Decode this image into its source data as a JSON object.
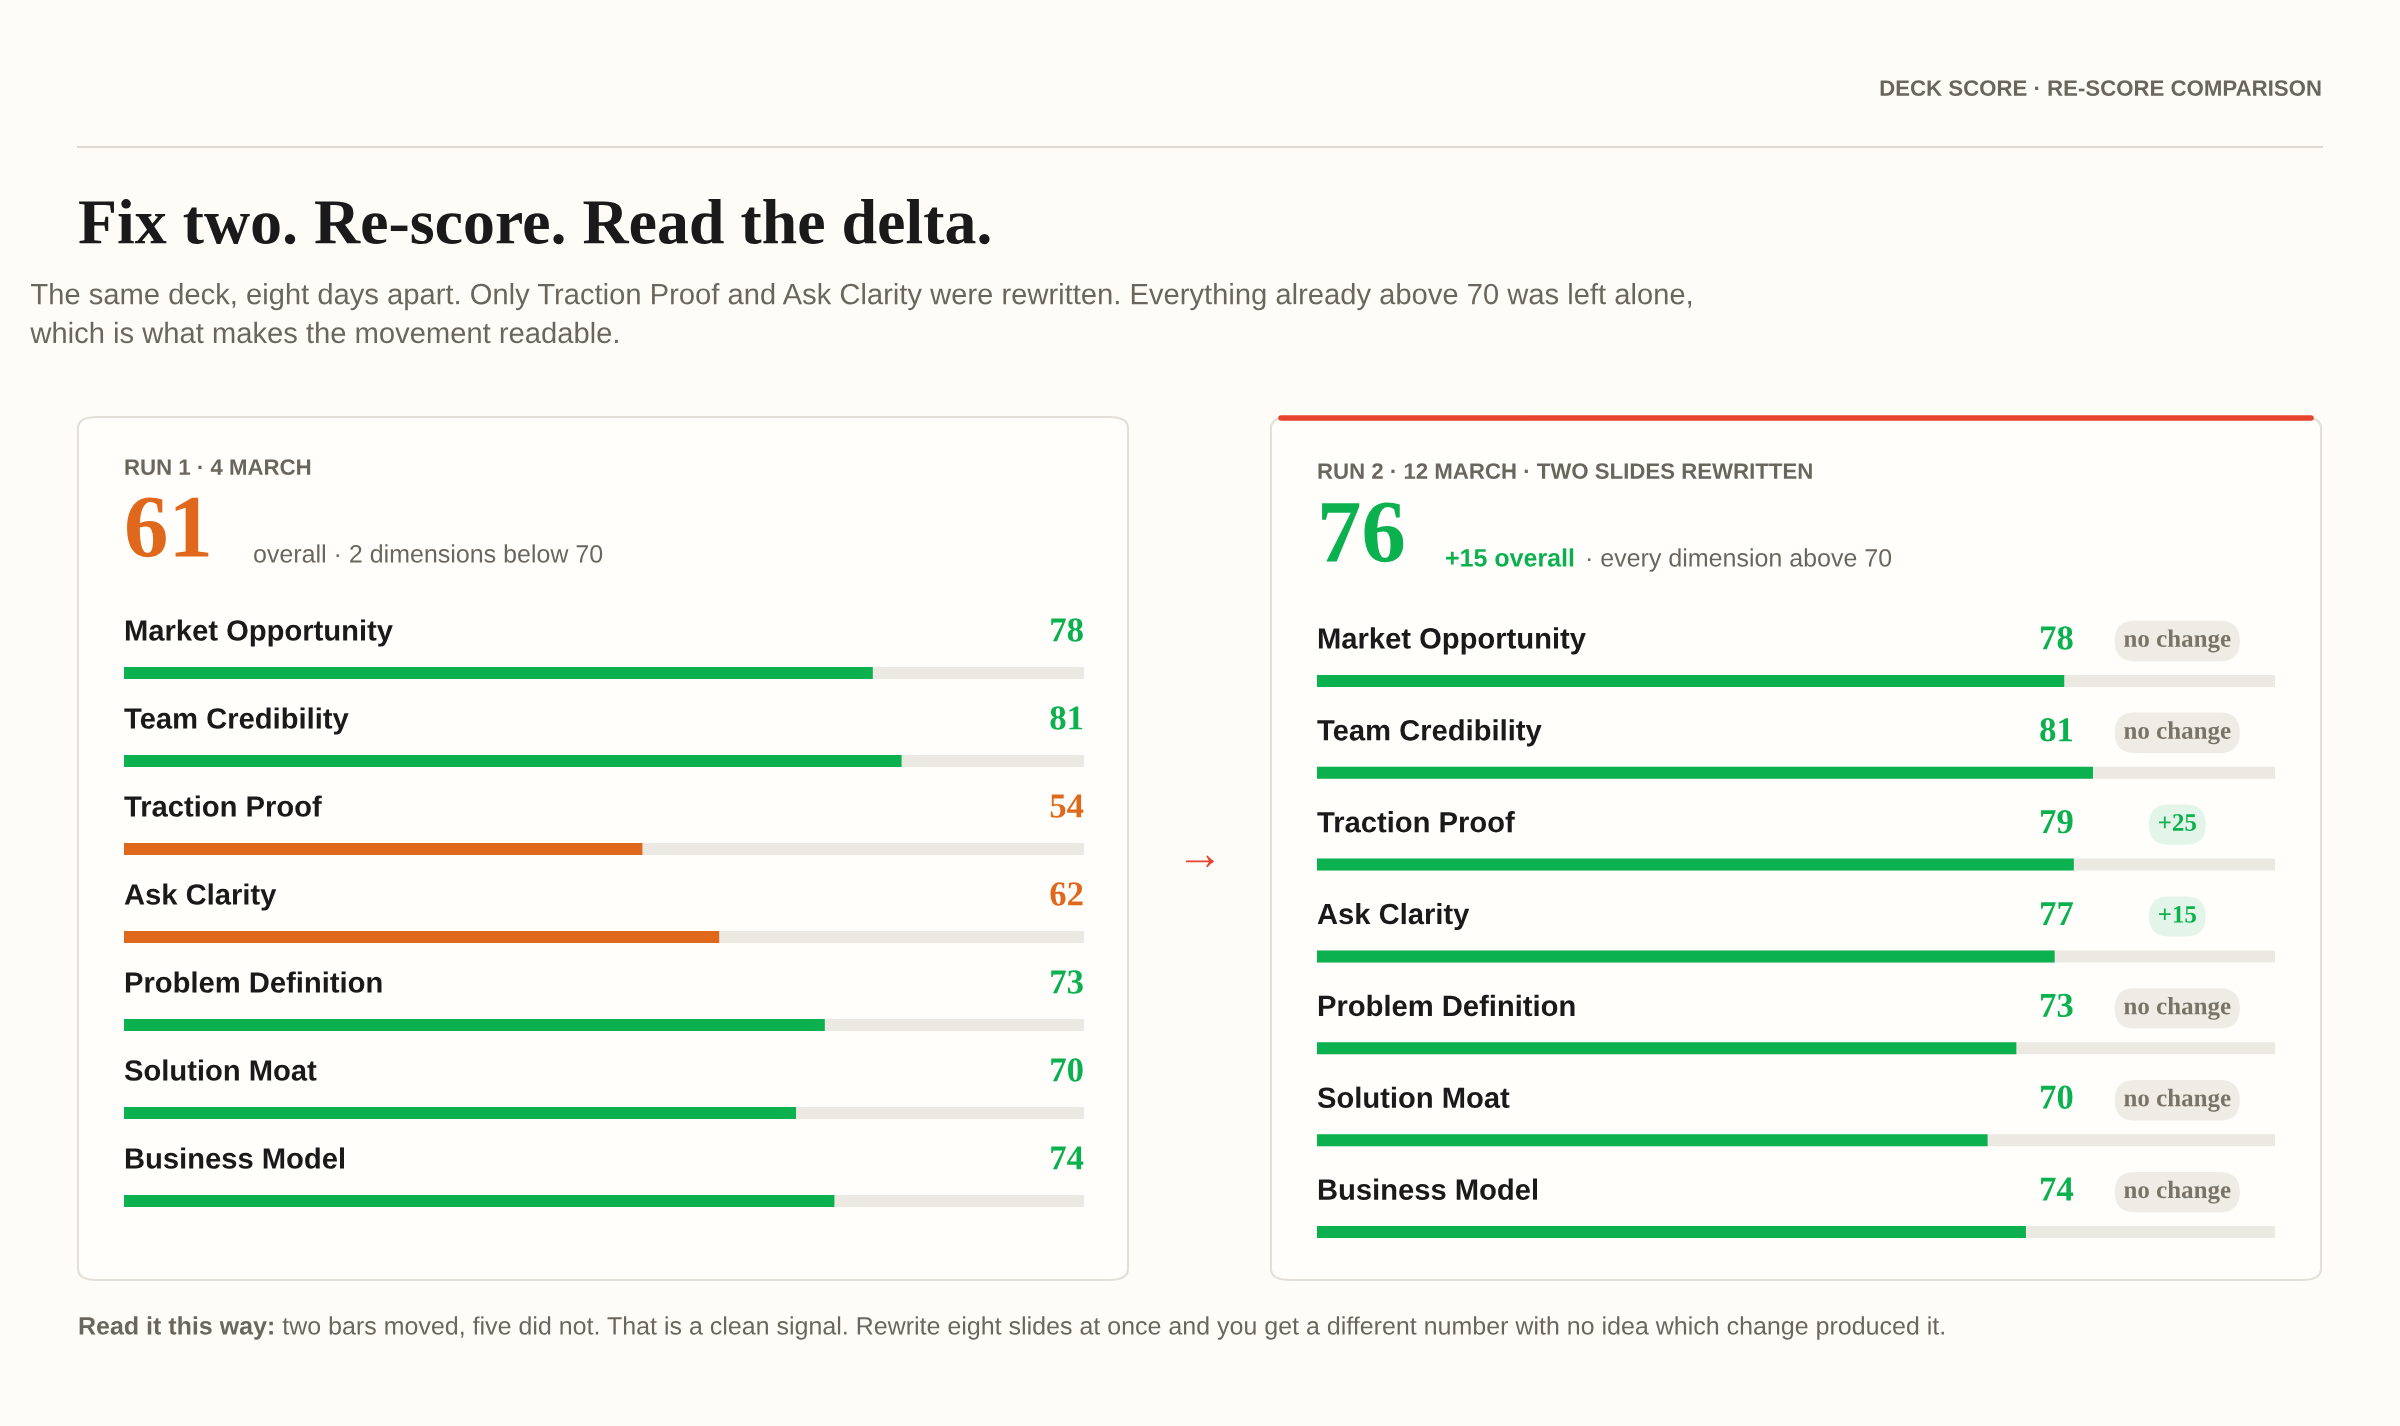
{
  "chart_data": [
    {
      "type": "bar",
      "orientation": "horizontal",
      "title": "Fix two. Re-score. Read the delta.",
      "subtitle": "The same deck, eight days apart. Only Traction Proof and Ask Clarity were rewritten. Everything already above 70 was left alone, which is what makes the movement readable.",
      "annotations": [
        "DECK SCORE · RE-SCORE COMPARISON",
        "RUN 1 · 4 MARCH",
        "61",
        "overall · 2 dimensions below 70",
        "→"
      ],
      "categories": [
        "Market Opportunity",
        "Team Credibility",
        "Traction Proof",
        "Ask Clarity",
        "Problem Definition",
        "Solution Moat",
        "Business Model"
      ],
      "values": [
        78,
        81,
        54,
        62,
        73,
        70,
        74
      ],
      "colors": [
        "#0bb04f",
        "#0bb04f",
        "#e0681c",
        "#e0681c",
        "#0bb04f",
        "#0bb04f",
        "#0bb04f"
      ],
      "xlim": [
        0,
        100
      ],
      "data_labels": true,
      "tick_labels": false
    },
    {
      "type": "bar",
      "orientation": "horizontal",
      "annotations": [
        "RUN 2 · 12 MARCH · TWO SLIDES REWRITTEN",
        "76",
        "+15 overall",
        "· every dimension above 70",
        "no change",
        "no change",
        "+25",
        "+15",
        "no change",
        "no change",
        "no change",
        "Read it this way:",
        "two bars moved, five did not. That is a clean signal. Rewrite eight slides at once and you get a different number with no idea which change produced it."
      ],
      "categories": [
        "Market Opportunity",
        "Team Credibility",
        "Traction Proof",
        "Ask Clarity",
        "Problem Definition",
        "Solution Moat",
        "Business Model"
      ],
      "values": [
        78,
        81,
        79,
        77,
        73,
        70,
        74
      ],
      "colors": [
        "#0bb04f",
        "#0bb04f",
        "#0bb04f",
        "#0bb04f",
        "#0bb04f",
        "#0bb04f",
        "#0bb04f"
      ],
      "xlim": [
        0,
        100
      ],
      "data_labels": true,
      "tick_labels": false
    }
  ]
}
